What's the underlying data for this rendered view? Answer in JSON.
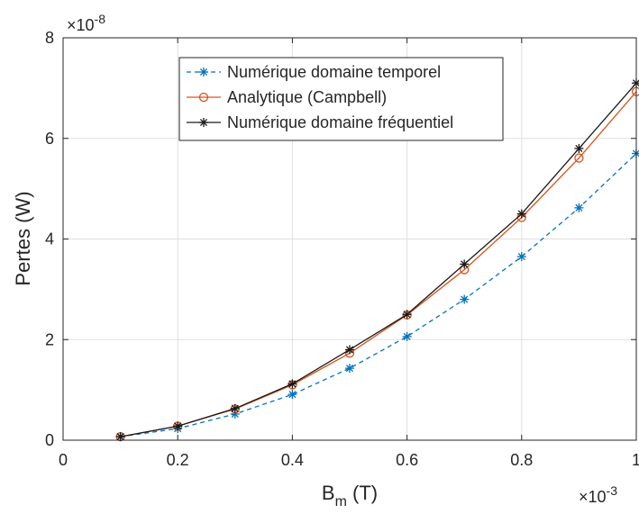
{
  "chart_data": {
    "type": "line",
    "title": "",
    "xlabel": {
      "main": "B",
      "sub": "m",
      "unit": " (T)"
    },
    "ylabel": "Pertes (W)",
    "x_exponent": {
      "base": "×10",
      "power": "-3"
    },
    "y_exponent": {
      "base": "×10",
      "power": "-8"
    },
    "xlim": [
      0,
      1
    ],
    "ylim": [
      0,
      8
    ],
    "xticks": [
      0,
      0.2,
      0.4,
      0.6,
      0.8,
      1
    ],
    "xtick_labels": [
      "0",
      "0.2",
      "0.4",
      "0.6",
      "0.8",
      "1"
    ],
    "yticks": [
      0,
      2,
      4,
      6,
      8
    ],
    "ytick_labels": [
      "0",
      "2",
      "4",
      "6",
      "8"
    ],
    "grid": true,
    "legend_position": "top-center",
    "x": [
      0.1,
      0.2,
      0.3,
      0.4,
      0.5,
      0.6,
      0.7,
      0.8,
      0.9,
      1.0
    ],
    "series": [
      {
        "name": "Numérique domaine temporel",
        "color": "#0072BD",
        "line_style": "dashed",
        "marker": "asterisk",
        "values": [
          0.07,
          0.23,
          0.52,
          0.91,
          1.43,
          2.06,
          2.8,
          3.65,
          4.62,
          5.7
        ]
      },
      {
        "name": "Analytique (Campbell)",
        "color": "#D95319",
        "line_style": "solid",
        "marker": "circle",
        "values": [
          0.07,
          0.28,
          0.62,
          1.1,
          1.73,
          2.49,
          3.39,
          4.43,
          5.61,
          6.93
        ]
      },
      {
        "name": "Numérique domaine fréquentiel",
        "color": "#1a1a1a",
        "line_style": "solid",
        "marker": "asterisk",
        "values": [
          0.07,
          0.28,
          0.63,
          1.12,
          1.8,
          2.5,
          3.5,
          4.5,
          5.8,
          7.1
        ]
      }
    ]
  }
}
